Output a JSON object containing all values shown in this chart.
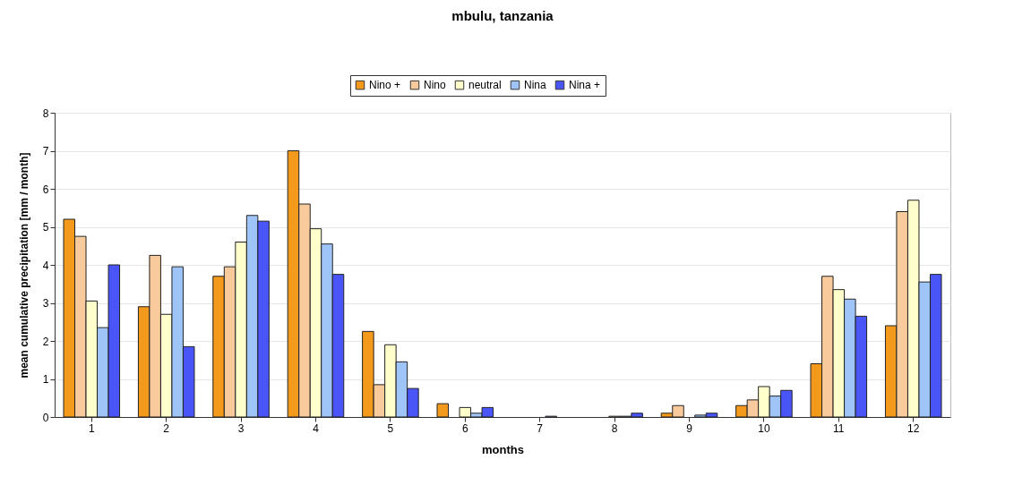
{
  "chart_data": {
    "type": "bar",
    "title": "mbulu, tanzania",
    "xlabel": "months",
    "ylabel": "mean cumulative precipitation [mm / month]",
    "categories": [
      "1",
      "2",
      "3",
      "4",
      "5",
      "6",
      "7",
      "8",
      "9",
      "10",
      "11",
      "12"
    ],
    "series": [
      {
        "name": "Nino +",
        "color": "#f39a1c",
        "values": [
          5.2,
          2.9,
          3.7,
          7.0,
          2.25,
          0.35,
          0,
          0,
          0.1,
          0.3,
          1.4,
          2.4
        ]
      },
      {
        "name": "Nino",
        "color": "#f9cb9c",
        "values": [
          4.75,
          4.25,
          3.95,
          5.6,
          0.85,
          0,
          0,
          0,
          0.3,
          0.45,
          3.7,
          5.4
        ]
      },
      {
        "name": "neutral",
        "color": "#ffffcc",
        "values": [
          3.05,
          2.7,
          4.6,
          4.95,
          1.9,
          0.25,
          0,
          0.02,
          0,
          0.8,
          3.35,
          5.7
        ]
      },
      {
        "name": "Nina",
        "color": "#9fc5f8",
        "values": [
          2.35,
          3.95,
          5.3,
          4.55,
          1.45,
          0.1,
          0.02,
          0.02,
          0.05,
          0.55,
          3.1,
          3.55
        ]
      },
      {
        "name": "Nina +",
        "color": "#4a55f7",
        "values": [
          4.0,
          1.85,
          5.15,
          3.75,
          0.75,
          0.25,
          0,
          0.1,
          0.1,
          0.7,
          2.65,
          3.75
        ]
      }
    ],
    "ylim": [
      0,
      8
    ],
    "yticks": [
      0,
      1,
      2,
      3,
      4,
      5,
      6,
      7,
      8
    ],
    "grid": "y",
    "legend": "top"
  }
}
